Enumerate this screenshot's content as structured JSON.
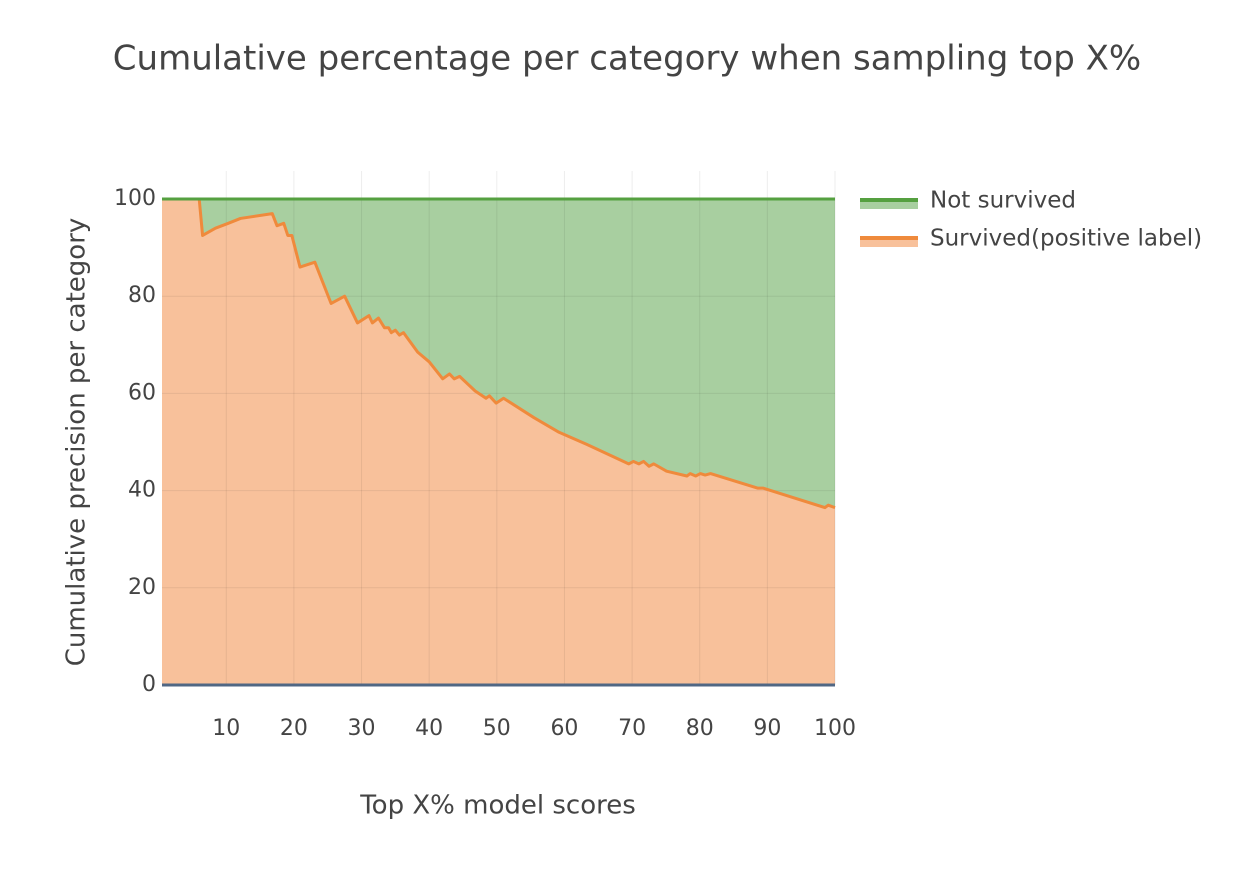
{
  "chart_data": {
    "type": "area",
    "stacked": true,
    "legend_order": "reversed",
    "grid": true,
    "zeroline": true,
    "title": "Cumulative percentage per category when sampling top X%",
    "x_label": "Top X% model scores",
    "y_label": "Cumulative precision per category",
    "xlim": [
      0.5,
      100
    ],
    "ylim": [
      0,
      100
    ],
    "xticks": [
      10,
      20,
      30,
      40,
      50,
      60,
      70,
      80,
      90,
      100
    ],
    "yticks": [
      0,
      20,
      40,
      60,
      80,
      100
    ],
    "x": [
      0.5,
      6,
      6.5,
      8.4,
      10.3,
      12.1,
      16.8,
      17.5,
      18.5,
      19.1,
      19.7,
      20.9,
      23.1,
      25.5,
      27.5,
      29.4,
      31.1,
      31.6,
      32.5,
      33.4,
      34,
      34.4,
      35,
      35.6,
      36.2,
      38.3,
      40,
      42,
      43,
      43.7,
      44.5,
      46.8,
      48.4,
      48.9,
      49.9,
      51,
      55.5,
      59.2,
      63.3,
      69.5,
      70.2,
      71,
      71.7,
      72.5,
      73.2,
      75.1,
      78.1,
      78.6,
      79.4,
      80.1,
      80.8,
      81.6,
      88.6,
      89.4,
      98.5,
      99,
      100
    ],
    "series": [
      {
        "name": "Survived(positive label)",
        "color": "#ef8a3c",
        "fill": "#f8c19b",
        "values": [
          100,
          100,
          92.5,
          94,
          95,
          96,
          97,
          94.5,
          95,
          92.5,
          92.5,
          86,
          87,
          78.5,
          80,
          74.5,
          76,
          74.5,
          75.5,
          73.5,
          73.5,
          72.5,
          73,
          72,
          72.5,
          68.5,
          66.5,
          63,
          64,
          63,
          63.5,
          60.5,
          59,
          59.5,
          58,
          59,
          55,
          52,
          49.5,
          45.5,
          46,
          45.5,
          46,
          45,
          45.5,
          44,
          43,
          43.5,
          43,
          43.5,
          43.2,
          43.5,
          40.5,
          40.5,
          36.5,
          37,
          36.5
        ]
      },
      {
        "name": "Not survived",
        "color": "#55a040",
        "fill": "#a8cfa0",
        "values": [
          0,
          0,
          7.5,
          6,
          5,
          4,
          3,
          5.5,
          5,
          7.5,
          7.5,
          14,
          13,
          21.5,
          20,
          25.5,
          24,
          25.5,
          24.5,
          26.5,
          26.5,
          27.5,
          27,
          28,
          27.5,
          31.5,
          33.5,
          37,
          36,
          37,
          36.5,
          39.5,
          41,
          40.5,
          42,
          41,
          45,
          48,
          50.5,
          54.5,
          54,
          54.5,
          54,
          55,
          54.5,
          56,
          57,
          56.5,
          57,
          56.5,
          56.8,
          56.5,
          59.5,
          59.5,
          63.5,
          63,
          63.5
        ]
      }
    ]
  }
}
